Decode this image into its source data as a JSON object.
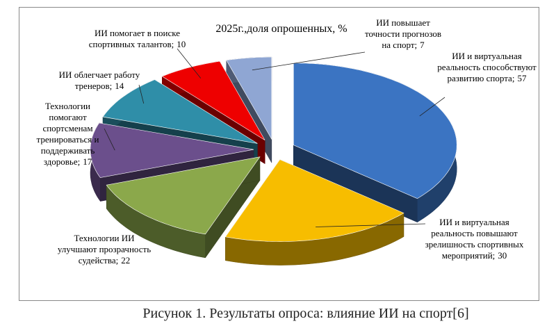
{
  "chart_data": {
    "type": "pie",
    "title": "2025г.,доля опрошенных, %",
    "caption": "Рисунок 1. Результаты опроса: влияние ИИ на спорт[6]",
    "categories": [
      "ИИ и виртуальная реальность способствуют развитию спорта;",
      "ИИ и виртуальная реальность повышают зрелишность спортивных мероприятий;",
      "Технологии ИИ улучшают прозрачность судейства;",
      "Технологии помогают спортсменам тренироваться и поддерживать здоровье;",
      "ИИ облегчает работу тренеров;",
      "ИИ  помогает в поиске спортивных талантов;",
      "ИИ повышает точности прогнозов на спорт;"
    ],
    "values": [
      57,
      30,
      22,
      17,
      14,
      10,
      7
    ],
    "colors": [
      "#3b74c2",
      "#f7bd00",
      "#8ba84b",
      "#6b4f8c",
      "#2f8ea8",
      "#ee0000",
      "#8fa6d3"
    ]
  }
}
